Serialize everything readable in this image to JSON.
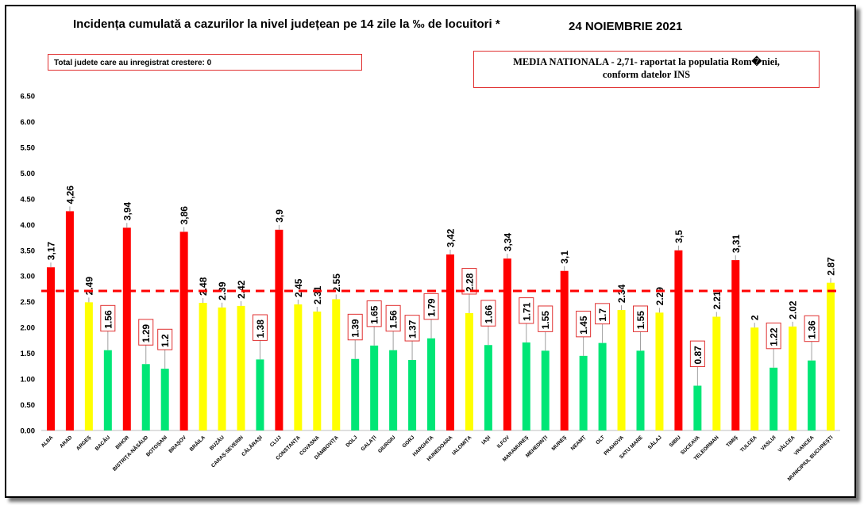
{
  "header": {
    "title": "Incidența cumulată a cazurilor la nivel județean pe 14 zile la ‰ de locuitori *",
    "date": "24 NOIEMBRIE 2021",
    "total_box": "Total judete care au inregistrat crestere: 0",
    "media_line1": "MEDIA NATIONALA - 2,71-  raportat la populatia Rom�niei,",
    "media_line2": "conform datelor INS"
  },
  "colors": {
    "red": "#ff0000",
    "yellow": "#ffff00",
    "green": "#00e676",
    "reference": "#ff0000"
  },
  "chart_data": {
    "type": "bar",
    "title": "Incidența cumulată a cazurilor la nivel județean pe 14 zile la ‰ de locuitori *",
    "ylim": [
      0,
      6.5
    ],
    "yticks": [
      "0.00",
      "0.50",
      "1.00",
      "1.50",
      "2.00",
      "2.50",
      "3.00",
      "3.50",
      "4.00",
      "4.50",
      "5.00",
      "5.50",
      "6.00",
      "6.50"
    ],
    "reference_line": 2.71,
    "grid": false,
    "categories": [
      "ALBA",
      "ARAD",
      "ARGEȘ",
      "BACĂU",
      "BIHOR",
      "BISTRIȚA-NĂSĂUD",
      "BOTOȘANI",
      "BRAȘOV",
      "BRĂILA",
      "BUZĂU",
      "CARAȘ-SEVERIN",
      "CĂLĂRAȘI",
      "CLUJ",
      "CONSTANȚA",
      "COVASNA",
      "DÂMBOVIȚA",
      "DOLJ",
      "GALAȚI",
      "GIURGIU",
      "GORJ",
      "HARGHITA",
      "HUNEDOARA",
      "IALOMIȚA",
      "IAȘI",
      "ILFOV",
      "MARAMUREȘ",
      "MEHEDINȚI",
      "MUREȘ",
      "NEAMȚ",
      "OLT",
      "PRAHOVA",
      "SATU MARE",
      "SĂLAJ",
      "SIBIU",
      "SUCEAVA",
      "TELEORMAN",
      "TIMIȘ",
      "TULCEA",
      "VASLUI",
      "VÂLCEA",
      "VRANCEA",
      "MUNICIPIUL BUCUREȘTI"
    ],
    "values": [
      3.17,
      4.26,
      2.49,
      1.56,
      3.94,
      1.29,
      1.2,
      3.86,
      2.48,
      2.39,
      2.42,
      1.38,
      3.9,
      2.45,
      2.31,
      2.55,
      1.39,
      1.65,
      1.56,
      1.37,
      1.79,
      3.42,
      2.28,
      1.66,
      3.34,
      1.71,
      1.55,
      3.1,
      1.45,
      1.7,
      2.34,
      1.55,
      2.29,
      3.5,
      0.87,
      2.21,
      3.31,
      2,
      1.22,
      2.02,
      1.36,
      2.87
    ],
    "value_labels": [
      "3,17",
      "4,26",
      "2.49",
      "1.56",
      "3,94",
      "1.29",
      "1.2",
      "3,86",
      "2.48",
      "2.39",
      "2.42",
      "1.38",
      "3,9",
      "2.45",
      "2.31",
      "2.55",
      "1.39",
      "1.65",
      "1.56",
      "1.37",
      "1.79",
      "3,42",
      "2.28",
      "1.66",
      "3,34",
      "1.71",
      "1.55",
      "3,1",
      "1.45",
      "1.7",
      "2.34",
      "1.55",
      "2.29",
      "3,5",
      "0.87",
      "2.21",
      "3,31",
      "2",
      "1.22",
      "2.02",
      "1.36",
      "2.87"
    ],
    "colors": [
      "red",
      "red",
      "yellow",
      "green",
      "red",
      "green",
      "green",
      "red",
      "yellow",
      "yellow",
      "yellow",
      "green",
      "red",
      "yellow",
      "yellow",
      "yellow",
      "green",
      "green",
      "green",
      "green",
      "green",
      "red",
      "yellow",
      "green",
      "red",
      "green",
      "green",
      "red",
      "green",
      "green",
      "yellow",
      "green",
      "yellow",
      "red",
      "green",
      "yellow",
      "red",
      "yellow",
      "green",
      "yellow",
      "green",
      "yellow"
    ],
    "boxed_labels": [
      3,
      5,
      6,
      11,
      16,
      17,
      18,
      19,
      20,
      22,
      23,
      25,
      26,
      28,
      29,
      31,
      34,
      38,
      40
    ]
  }
}
